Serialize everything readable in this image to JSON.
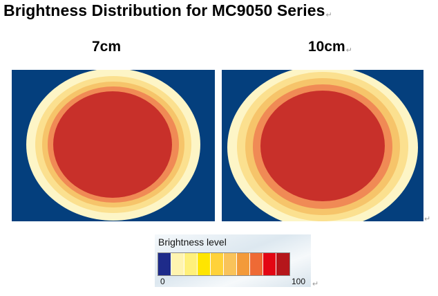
{
  "title": "Brightness Distribution for MC9050 Series",
  "panels": [
    {
      "label": "7cm"
    },
    {
      "label": "10cm"
    }
  ],
  "legend": {
    "title": "Brightness level",
    "min_label": "0",
    "max_label": "100",
    "colors": [
      "#1e2b8a",
      "#fff4b0",
      "#fff07a",
      "#ffe500",
      "#ffd23a",
      "#f9c35a",
      "#f39a3a",
      "#ee6a35",
      "#e30613",
      "#b5161b"
    ]
  },
  "heatmap_colors": {
    "background": "#043f7d",
    "outer": "#fdf5c6",
    "ring2": "#fbe08f",
    "ring3": "#f6c46a",
    "ring4": "#f08a55",
    "core": "#c8302a"
  }
}
